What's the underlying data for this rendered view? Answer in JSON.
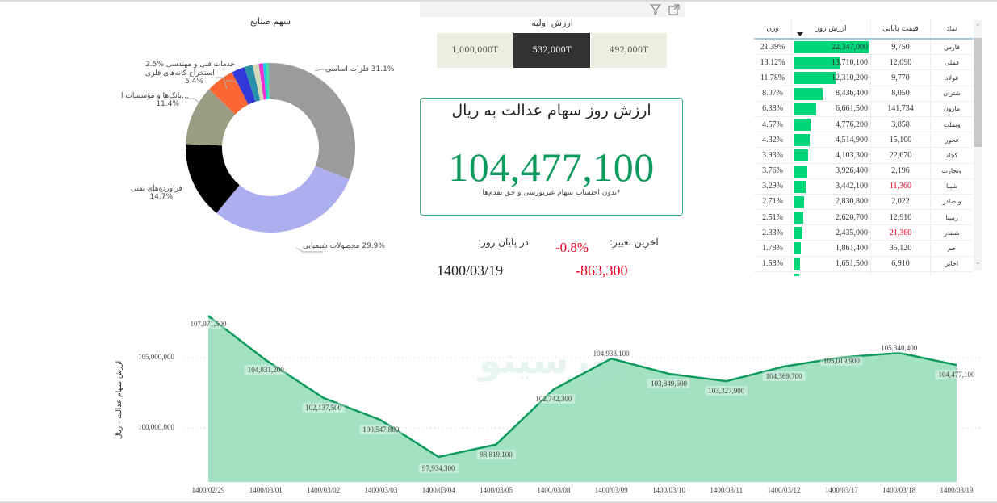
{
  "header": {
    "filter_icon": "filter-icon",
    "focus_icon": "focus-mode-icon"
  },
  "donut": {
    "title": "سهم صنایع",
    "segments": [
      {
        "label": "فلزات اساسی",
        "pct": "31.1%",
        "value": 31.1,
        "color": "#9b9b9b"
      },
      {
        "label": "محصولات شیمیایی",
        "pct": "29.9%",
        "value": 29.9,
        "color": "#acaef0"
      },
      {
        "label": "فراورده‌های نفتی",
        "pct": "14.7%",
        "value": 14.7,
        "color": "#000000"
      },
      {
        "label": "بانک‌ها و مؤسسات ا...",
        "pct": "11.4%",
        "value": 11.4,
        "color": "#9a9d84"
      },
      {
        "label": "استخراج کانه‌های فلزی",
        "pct": "5.4%",
        "value": 5.4,
        "color": "#fc6633"
      },
      {
        "label": "خدمات فنی و مهندسی",
        "pct": "2.5%",
        "value": 2.5,
        "color": "#3437d8"
      },
      {
        "label": "",
        "pct": "",
        "value": 1.6,
        "color": "#2a8fa8"
      },
      {
        "label": "",
        "pct": "",
        "value": 1.2,
        "color": "#d4d9b8"
      },
      {
        "label": "",
        "pct": "",
        "value": 0.8,
        "color": "#f22fd0"
      },
      {
        "label": "",
        "pct": "",
        "value": 0.6,
        "color": "#1fc8e0"
      },
      {
        "label": "",
        "pct": "",
        "value": 0.4,
        "color": "#3fe29a"
      },
      {
        "label": "",
        "pct": "",
        "value": 0.4,
        "color": "#7fa8a8"
      }
    ]
  },
  "slicer": {
    "title": "ارزش اولیه",
    "options": [
      "1,000,000T",
      "532,000T",
      "492,000T"
    ],
    "selected_index": 1
  },
  "kpi": {
    "title": "ارزش روز سهام عدالت به ریال",
    "value": "104,477,100",
    "note": "*بدون احتساب سهام غیربورسی و حق تقدم‌ها"
  },
  "change": {
    "last_change_label": "آخرین تغییر:",
    "end_of_day_label": "در پایان روز:",
    "percent": "-0.8%",
    "amount": "-863,300",
    "date": "1400/03/19"
  },
  "table": {
    "columns": [
      "نماد",
      "قیمت پایانی",
      "ارزش روز",
      "وزن"
    ],
    "sorted_column": "ارزش روز",
    "rows": [
      {
        "symbol": "فارس",
        "price": "9,750",
        "value": "22,347,000",
        "raw": 22347000,
        "weight": "21.39%",
        "price_red": false
      },
      {
        "symbol": "فملی",
        "price": "12,090",
        "value": "13,710,100",
        "raw": 13710100,
        "weight": "13.12%",
        "price_red": false
      },
      {
        "symbol": "فولاد",
        "price": "9,770",
        "value": "12,310,200",
        "raw": 12310200,
        "weight": "11.78%",
        "price_red": false
      },
      {
        "symbol": "شتران",
        "price": "8,050",
        "value": "8,436,400",
        "raw": 8436400,
        "weight": "8.07%",
        "price_red": false
      },
      {
        "symbol": "مارون",
        "price": "141,734",
        "value": "6,661,500",
        "raw": 6661500,
        "weight": "6.38%",
        "price_red": false
      },
      {
        "symbol": "وبملت",
        "price": "3,858",
        "value": "4,776,200",
        "raw": 4776200,
        "weight": "4.57%",
        "price_red": false
      },
      {
        "symbol": "فخوز",
        "price": "15,100",
        "value": "4,514,900",
        "raw": 4514900,
        "weight": "4.32%",
        "price_red": false
      },
      {
        "symbol": "کچاد",
        "price": "22,670",
        "value": "4,103,300",
        "raw": 4103300,
        "weight": "3.93%",
        "price_red": false
      },
      {
        "symbol": "وتجارت",
        "price": "2,196",
        "value": "3,926,400",
        "raw": 3926400,
        "weight": "3.76%",
        "price_red": false
      },
      {
        "symbol": "شپنا",
        "price": "11,360",
        "value": "3,442,100",
        "raw": 3442100,
        "weight": "3.29%",
        "price_red": true
      },
      {
        "symbol": "وبصادر",
        "price": "2,022",
        "value": "2,830,800",
        "raw": 2830800,
        "weight": "2.71%",
        "price_red": false
      },
      {
        "symbol": "رمپنا",
        "price": "12,910",
        "value": "2,620,700",
        "raw": 2620700,
        "weight": "2.51%",
        "price_red": false
      },
      {
        "symbol": "شبندر",
        "price": "21,360",
        "value": "2,435,000",
        "raw": 2435000,
        "weight": "2.33%",
        "price_red": true
      },
      {
        "symbol": "جم",
        "price": "35,120",
        "value": "1,861,400",
        "raw": 1861400,
        "weight": "1.78%",
        "price_red": false
      },
      {
        "symbol": "اخابر",
        "price": "6,910",
        "value": "1,651,500",
        "raw": 1651500,
        "weight": "1.58%",
        "price_red": false
      }
    ]
  },
  "chart_data": {
    "type": "area",
    "title": "",
    "xlabel": "",
    "ylabel": "ارزش سهام عدالت - ریال",
    "categories": [
      "1400/02/29",
      "1400/03/01",
      "1400/03/02",
      "1400/03/03",
      "1400/03/04",
      "1400/03/05",
      "1400/03/08",
      "1400/03/09",
      "1400/03/10",
      "1400/03/11",
      "1400/03/12",
      "1400/03/17",
      "1400/03/18",
      "1400/03/19"
    ],
    "values": [
      107971500,
      104831200,
      102137500,
      100547800,
      97934300,
      98819100,
      102742300,
      104933100,
      103849600,
      103327900,
      104369700,
      105019900,
      105340400,
      104477100
    ],
    "value_labels": [
      "107,971,500",
      "104,831,200",
      "102,137,500",
      "100,547,800",
      "97,934,300",
      "98,819,100",
      "102,742,300",
      "104,933,100",
      "103,849,600",
      "103,327,900",
      "104,369,700",
      "105,019,900",
      "105,340,400",
      "104,477,100"
    ],
    "yticks": [
      "105,000,000",
      "100,000,000"
    ],
    "ytick_values": [
      105000000,
      100000000
    ],
    "grid": true,
    "line_color": "#0f9a5d",
    "fill_color": "#9edfc2",
    "watermark": "بورسینو"
  }
}
